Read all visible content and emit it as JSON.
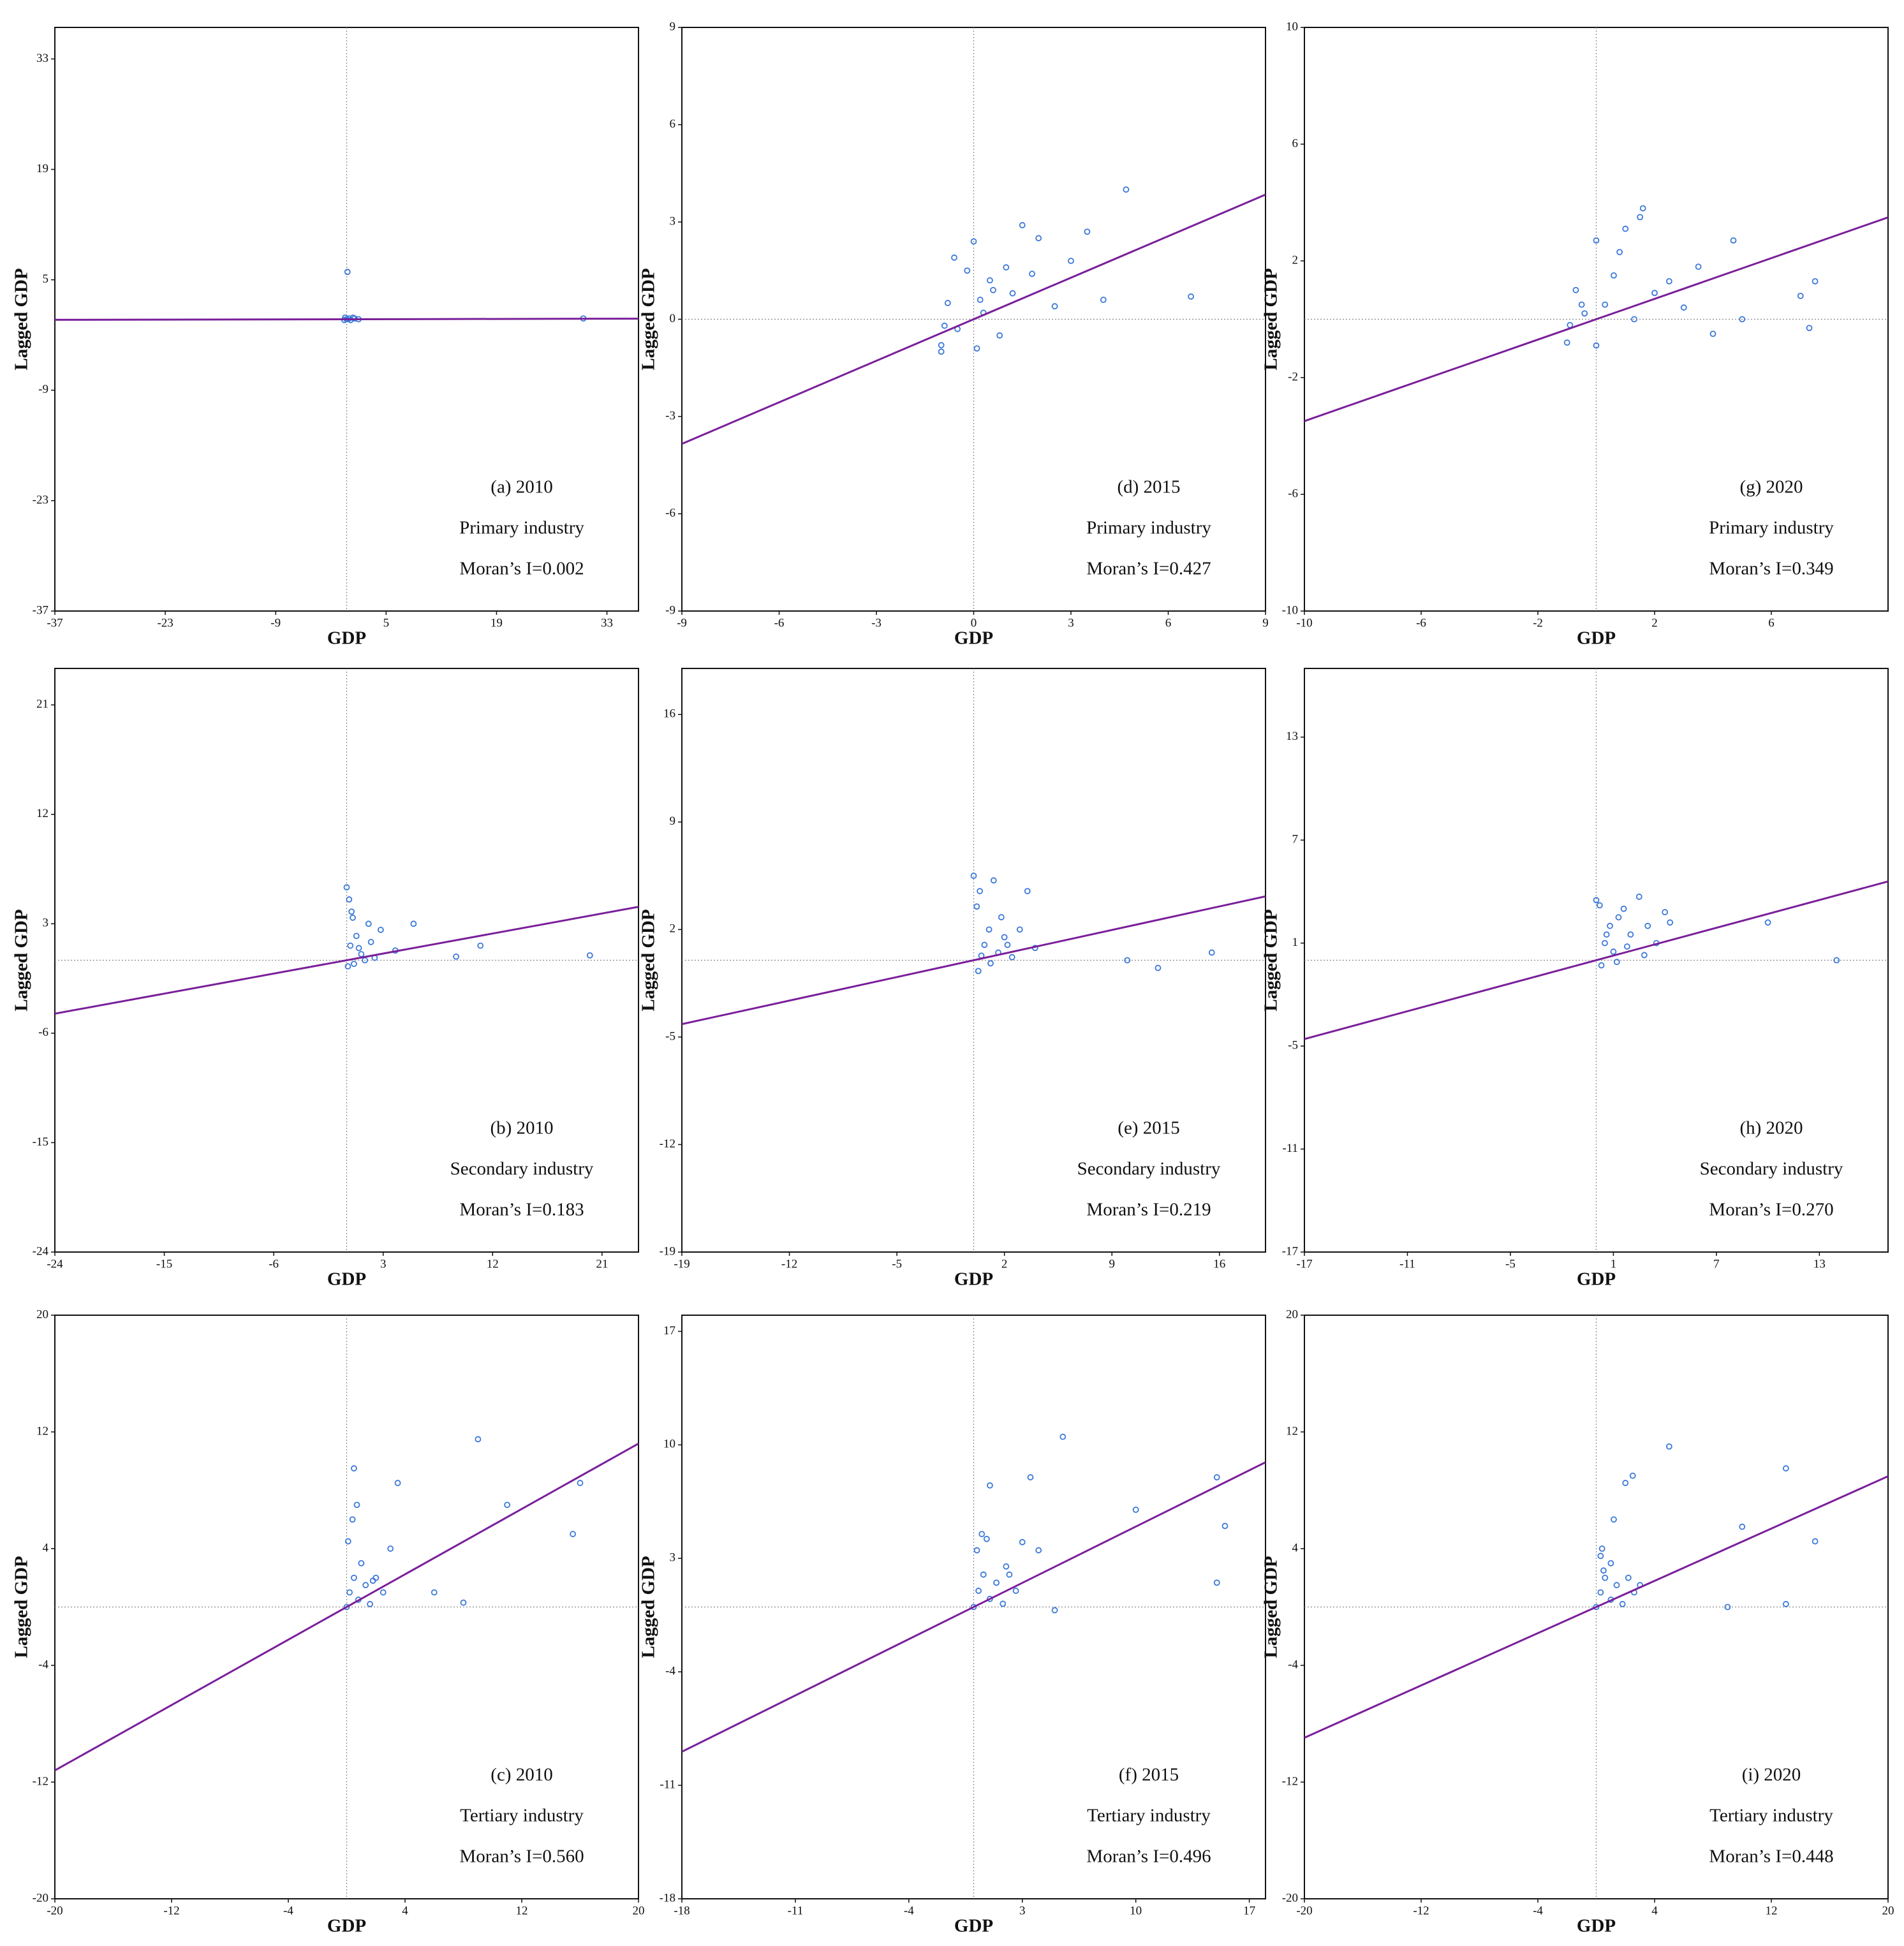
{
  "chart_data": [
    {
      "type": "scatter",
      "annotations": [
        "(a) 2010",
        "Primary industry",
        "Moran’s I=0.002"
      ],
      "x_label": "GDP",
      "y_label": "Lagged GDP",
      "color": "#3a78d8",
      "x": [
        0,
        0.3,
        -0.2,
        0.5,
        1,
        0.1,
        30,
        0.8,
        -0.3,
        1.5
      ],
      "y": [
        0,
        0.1,
        0.2,
        -0.1,
        0.1,
        6,
        0.1,
        0.2,
        -0.1,
        0
      ],
      "trendline": {
        "slope": 0.002,
        "color": "#7a1f9a"
      },
      "xlim": [
        -37,
        37
      ],
      "ylim": [
        -37,
        37
      ],
      "xticks": [
        -37,
        -23,
        -9,
        5,
        19,
        33
      ],
      "yticks": [
        -37,
        -23,
        -9,
        5,
        19,
        33
      ]
    },
    {
      "type": "scatter",
      "annotations": [
        "(d) 2015",
        "Primary industry",
        "Moran’s I=0.427"
      ],
      "x_label": "GDP",
      "y_label": "Lagged GDP",
      "color": "#3a78d8",
      "x": [
        -1,
        -0.8,
        -0.5,
        -0.2,
        0,
        0.3,
        0.5,
        0.8,
        1,
        1.2,
        1.5,
        2,
        2.5,
        3,
        3.5,
        4,
        4.7,
        6.7,
        -0.9,
        -0.6,
        0.1,
        0.6,
        1.8,
        -1,
        0.2
      ],
      "y": [
        -0.8,
        0.5,
        -0.3,
        1.5,
        2.4,
        0.2,
        1.2,
        -0.5,
        1.6,
        0.8,
        2.9,
        2.5,
        0.4,
        1.8,
        2.7,
        0.6,
        4.0,
        0.7,
        -0.2,
        1.9,
        -0.9,
        0.9,
        1.4,
        -1.0,
        0.6
      ],
      "trendline": {
        "slope": 0.427,
        "color": "#7a1f9a"
      },
      "xlim": [
        -9,
        9
      ],
      "ylim": [
        -9,
        9
      ],
      "xticks": [
        -9,
        -6,
        -3,
        0,
        3,
        6,
        9
      ],
      "yticks": [
        -9,
        -6,
        -3,
        0,
        3,
        6,
        9
      ]
    },
    {
      "type": "scatter",
      "annotations": [
        "(g) 2020",
        "Primary industry",
        "Moran’s I=0.349"
      ],
      "x_label": "GDP",
      "y_label": "Lagged GDP",
      "color": "#3a78d8",
      "x": [
        -1,
        -0.7,
        -0.4,
        0,
        0.3,
        0.6,
        1,
        1.3,
        1.6,
        2,
        2.5,
        3,
        3.5,
        4,
        4.7,
        5,
        7,
        7.5,
        7.3,
        -0.9,
        0,
        0.8,
        1.5,
        -0.5
      ],
      "y": [
        -0.8,
        1.0,
        0.2,
        2.7,
        0.5,
        1.5,
        3.1,
        0.0,
        3.8,
        0.9,
        1.3,
        0.4,
        1.8,
        -0.5,
        2.7,
        0.0,
        0.8,
        1.3,
        -0.3,
        -0.2,
        -0.9,
        2.3,
        3.5,
        0.5
      ],
      "trendline": {
        "slope": 0.349,
        "color": "#7a1f9a"
      },
      "xlim": [
        -10,
        10
      ],
      "ylim": [
        -10,
        10
      ],
      "xticks": [
        -10,
        -6,
        -2,
        2,
        6
      ],
      "yticks": [
        -10,
        -6,
        -2,
        2,
        6,
        10
      ]
    },
    {
      "type": "scatter",
      "annotations": [
        "(b) 2010",
        "Secondary industry",
        "Moran’s I=0.183"
      ],
      "x_label": "GDP",
      "y_label": "Lagged GDP",
      "color": "#3a78d8",
      "x": [
        0,
        0.2,
        0.5,
        0.8,
        1,
        1.2,
        1.5,
        2,
        2.3,
        0.1,
        0.4,
        2.8,
        4,
        5.5,
        9,
        11,
        20,
        0.6,
        1.8,
        0.3
      ],
      "y": [
        6,
        5,
        3.5,
        2,
        1,
        0.5,
        0,
        1.5,
        0.2,
        -0.5,
        4,
        2.5,
        0.8,
        3,
        0.3,
        1.2,
        0.4,
        -0.3,
        3,
        1.2
      ],
      "trendline": {
        "slope": 0.183,
        "color": "#7a1f9a"
      },
      "xlim": [
        -24,
        24
      ],
      "ylim": [
        -24,
        24
      ],
      "xticks": [
        -24,
        -15,
        -6,
        3,
        12,
        21
      ],
      "yticks": [
        -24,
        -15,
        -6,
        3,
        12,
        21
      ]
    },
    {
      "type": "scatter",
      "annotations": [
        "(e) 2015",
        "Secondary industry",
        "Moran’s I=0.219"
      ],
      "x_label": "GDP",
      "y_label": "Lagged GDP",
      "color": "#3a78d8",
      "x": [
        0,
        0.2,
        0.4,
        0.7,
        1,
        1.3,
        1.6,
        2,
        2.5,
        3,
        3.5,
        4,
        10,
        12,
        15.5,
        0.3,
        1.8,
        0.5,
        2.2,
        1.1
      ],
      "y": [
        5.5,
        3.5,
        4.5,
        1,
        2,
        5.2,
        0.5,
        1.5,
        0.2,
        2,
        4.5,
        0.8,
        0,
        -0.5,
        0.5,
        -0.7,
        2.8,
        0.3,
        1,
        -0.2
      ],
      "trendline": {
        "slope": 0.219,
        "color": "#7a1f9a"
      },
      "xlim": [
        -19,
        19
      ],
      "ylim": [
        -19,
        19
      ],
      "xticks": [
        -19,
        -12,
        -5,
        2,
        9,
        16
      ],
      "yticks": [
        -19,
        -12,
        -5,
        2,
        9,
        16
      ]
    },
    {
      "type": "scatter",
      "annotations": [
        "(h) 2020",
        "Secondary industry",
        "Moran’s I=0.270"
      ],
      "x_label": "GDP",
      "y_label": "Lagged GDP",
      "color": "#3a78d8",
      "x": [
        0,
        0.2,
        0.5,
        0.8,
        1,
        1.3,
        1.6,
        2,
        2.5,
        3,
        3.5,
        4,
        10,
        14,
        0.3,
        1.8,
        2.8,
        0.6,
        4.3,
        1.2
      ],
      "y": [
        3.5,
        3.2,
        1,
        2,
        0.5,
        2.5,
        3,
        1.5,
        3.7,
        2,
        1,
        2.8,
        2.2,
        0,
        -0.3,
        0.8,
        0.3,
        1.5,
        2.2,
        -0.1
      ],
      "trendline": {
        "slope": 0.27,
        "color": "#7a1f9a"
      },
      "xlim": [
        -17,
        17
      ],
      "ylim": [
        -17,
        17
      ],
      "xticks": [
        -17,
        -11,
        -5,
        1,
        7,
        13
      ],
      "yticks": [
        -17,
        -11,
        -5,
        1,
        7,
        13
      ]
    },
    {
      "type": "scatter",
      "annotations": [
        "(c) 2010",
        "Tertiary industry",
        "Moran’s I=0.560"
      ],
      "x_label": "GDP",
      "y_label": "Lagged GDP",
      "color": "#3a78d8",
      "x": [
        0,
        0.2,
        0.5,
        0.8,
        1,
        1.3,
        1.6,
        2,
        2.5,
        0.5,
        0.7,
        0.4,
        3,
        3.5,
        6,
        8,
        11,
        9,
        16,
        15.5,
        0.1,
        1.8
      ],
      "y": [
        0,
        1,
        2,
        0.5,
        3,
        1.5,
        0.2,
        2,
        1,
        9.5,
        7,
        6,
        4,
        8.5,
        1,
        0.3,
        7,
        11.5,
        8.5,
        5,
        4.5,
        1.8
      ],
      "trendline": {
        "slope": 0.56,
        "color": "#7a1f9a"
      },
      "xlim": [
        -20,
        20
      ],
      "ylim": [
        -20,
        20
      ],
      "xticks": [
        -20,
        -12,
        -4,
        4,
        12,
        20
      ],
      "yticks": [
        -20,
        -12,
        -4,
        4,
        12,
        20
      ]
    },
    {
      "type": "scatter",
      "annotations": [
        "(f) 2015",
        "Tertiary industry",
        "Moran’s I=0.496"
      ],
      "x_label": "GDP",
      "y_label": "Lagged GDP",
      "color": "#3a78d8",
      "x": [
        0,
        0.3,
        0.6,
        1,
        1.4,
        1.8,
        2.2,
        2.6,
        0.5,
        1,
        0.2,
        3,
        4,
        3.5,
        5.5,
        10,
        15,
        15.5,
        15,
        5,
        0.8,
        2
      ],
      "y": [
        0,
        1,
        2,
        0.5,
        1.5,
        0.2,
        2,
        1,
        4.5,
        7.5,
        3.5,
        4,
        3.5,
        8,
        10.5,
        6,
        8,
        5,
        1.5,
        -0.2,
        4.2,
        2.5
      ],
      "trendline": {
        "slope": 0.496,
        "color": "#7a1f9a"
      },
      "xlim": [
        -18,
        18
      ],
      "ylim": [
        -18,
        18
      ],
      "xticks": [
        -18,
        -11,
        -4,
        3,
        10,
        17
      ],
      "yticks": [
        -18,
        -11,
        -4,
        3,
        10,
        17
      ]
    },
    {
      "type": "scatter",
      "annotations": [
        "(i) 2020",
        "Tertiary industry",
        "Moran’s I=0.448"
      ],
      "x_label": "GDP",
      "y_label": "Lagged GDP",
      "color": "#3a78d8",
      "x": [
        0,
        0.3,
        0.6,
        1,
        1.4,
        1.8,
        2.2,
        2.6,
        0.3,
        0.5,
        1,
        1.2,
        2,
        2.5,
        3,
        5,
        10,
        13,
        15,
        13,
        9,
        0.4
      ],
      "y": [
        0,
        1,
        2,
        0.5,
        1.5,
        0.2,
        2,
        1,
        3.5,
        2.5,
        3,
        6,
        8.5,
        9,
        1.5,
        11,
        5.5,
        9.5,
        4.5,
        0.2,
        0,
        4
      ],
      "trendline": {
        "slope": 0.448,
        "color": "#7a1f9a"
      },
      "xlim": [
        -20,
        20
      ],
      "ylim": [
        -20,
        20
      ],
      "xticks": [
        -20,
        -12,
        -4,
        4,
        12,
        20
      ],
      "yticks": [
        -20,
        -12,
        -4,
        4,
        12,
        20
      ]
    }
  ]
}
